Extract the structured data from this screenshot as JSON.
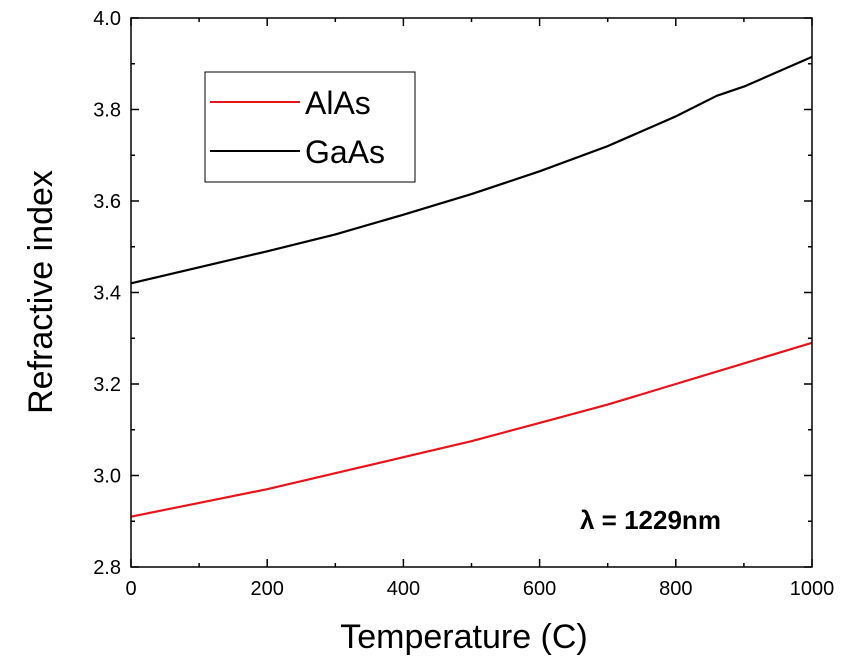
{
  "chart_data": {
    "type": "line",
    "title": "",
    "xlabel": "Temperature (C)",
    "ylabel": "Refractive index",
    "xlim": [
      0,
      1000
    ],
    "ylim": [
      2.8,
      4.0
    ],
    "xticks": [
      0,
      200,
      400,
      600,
      800,
      1000
    ],
    "yticks": [
      2.8,
      3.0,
      3.2,
      3.4,
      3.6,
      3.8,
      4.0
    ],
    "xtick_labels": [
      "0",
      "200",
      "400",
      "600",
      "800",
      "1000"
    ],
    "ytick_labels": [
      "2.8",
      "3.0",
      "3.2",
      "3.4",
      "3.6",
      "3.8",
      "4.0"
    ],
    "grid": false,
    "legend_position": "top-left",
    "annotation": "λ = 1229nm",
    "series": [
      {
        "name": "AlAs",
        "color": "#e8141b",
        "x": [
          0,
          100,
          200,
          300,
          400,
          500,
          600,
          700,
          800,
          900,
          1000
        ],
        "y": [
          2.91,
          2.94,
          2.97,
          3.005,
          3.04,
          3.075,
          3.115,
          3.155,
          3.2,
          3.245,
          3.29
        ]
      },
      {
        "name": "GaAs",
        "color": "#000000",
        "x": [
          0,
          100,
          200,
          300,
          400,
          500,
          600,
          700,
          800,
          860,
          900,
          1000
        ],
        "y": [
          3.42,
          3.455,
          3.49,
          3.527,
          3.57,
          3.615,
          3.665,
          3.72,
          3.785,
          3.83,
          3.85,
          3.915
        ]
      }
    ]
  }
}
